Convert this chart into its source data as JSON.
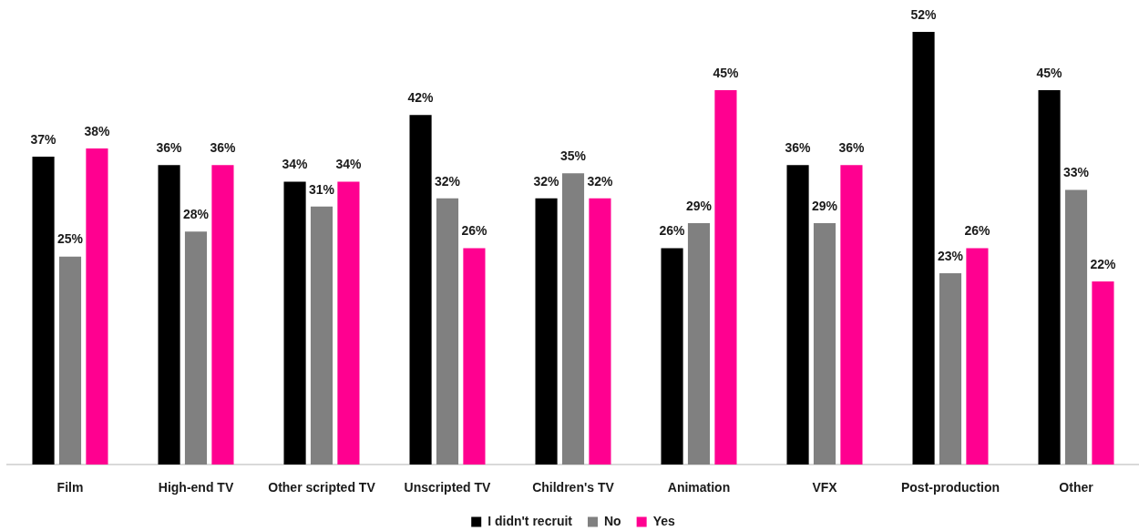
{
  "chart_data": {
    "type": "bar",
    "categories": [
      "Film",
      "High-end TV",
      "Other scripted TV",
      "Unscripted TV",
      "Children's TV",
      "Animation",
      "VFX",
      "Post-production",
      "Other"
    ],
    "series": [
      {
        "name": "I didn't recruit",
        "color": "#000000",
        "values": [
          37,
          36,
          34,
          42,
          32,
          26,
          36,
          52,
          45
        ],
        "value_labels": [
          "37%",
          "36%",
          "34%",
          "42%",
          "32%",
          "26%",
          "36%",
          "52%",
          "45%"
        ]
      },
      {
        "name": "No",
        "color": "#808080",
        "values": [
          25,
          28,
          31,
          32,
          35,
          29,
          29,
          23,
          33
        ],
        "value_labels": [
          "25%",
          "28%",
          "31%",
          "32%",
          "35%",
          "29%",
          "29%",
          "23%",
          "33%"
        ]
      },
      {
        "name": "Yes",
        "color": "#ff0090",
        "values": [
          38,
          36,
          34,
          26,
          32,
          45,
          36,
          26,
          22
        ],
        "value_labels": [
          "38%",
          "36%",
          "34%",
          "26%",
          "32%",
          "45%",
          "36%",
          "26%",
          "22%"
        ]
      }
    ],
    "legend": "bottom"
  }
}
